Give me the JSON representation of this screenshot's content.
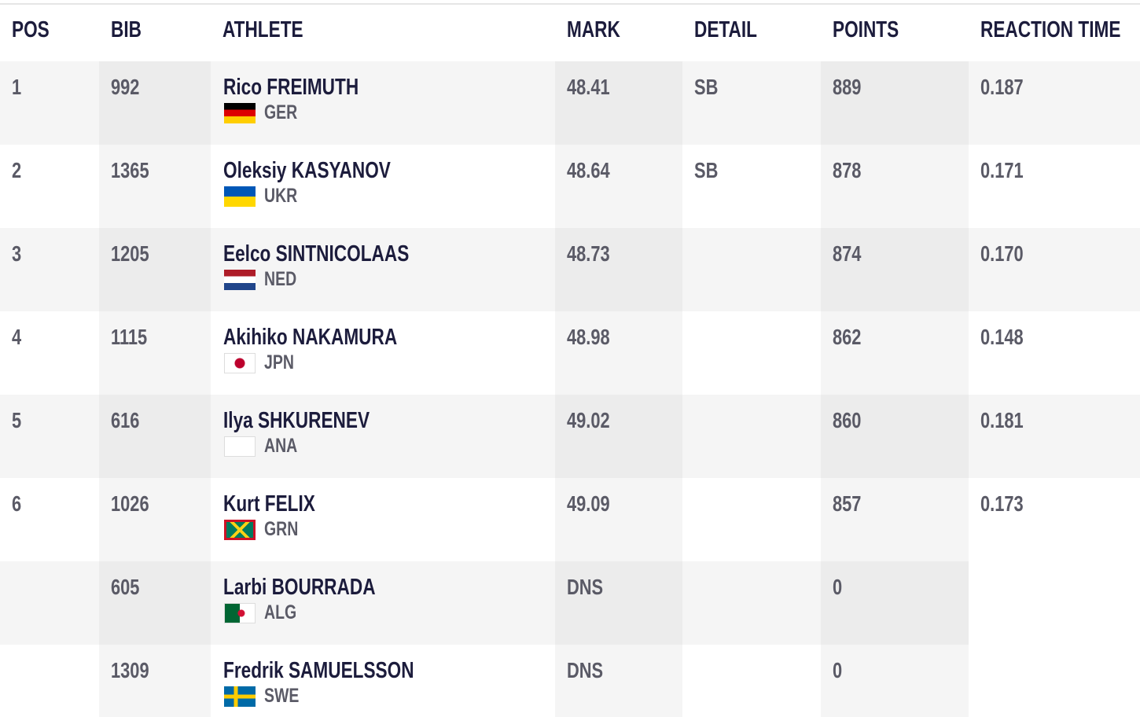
{
  "header": {
    "pos": "POS",
    "bib": "BIB",
    "athlete": "ATHLETE",
    "mark": "MARK",
    "detail": "DETAIL",
    "points": "POINTS",
    "reaction": "REACTION TIME"
  },
  "rows": [
    {
      "pos": "1",
      "bib": "992",
      "athlete": "Rico FREIMUTH",
      "country": "GER",
      "mark": "48.41",
      "detail": "SB",
      "points": "889",
      "reaction": "0.187"
    },
    {
      "pos": "2",
      "bib": "1365",
      "athlete": "Oleksiy KASYANOV",
      "country": "UKR",
      "mark": "48.64",
      "detail": "SB",
      "points": "878",
      "reaction": "0.171"
    },
    {
      "pos": "3",
      "bib": "1205",
      "athlete": "Eelco SINTNICOLAAS",
      "country": "NED",
      "mark": "48.73",
      "points": "874",
      "reaction": "0.170"
    },
    {
      "pos": "4",
      "bib": "1115",
      "athlete": "Akihiko NAKAMURA",
      "country": "JPN",
      "mark": "48.98",
      "points": "862",
      "reaction": "0.148"
    },
    {
      "pos": "5",
      "bib": "616",
      "athlete": "Ilya SHKURENEV",
      "country": "ANA",
      "mark": "49.02",
      "points": "860",
      "reaction": "0.181"
    },
    {
      "pos": "6",
      "bib": "1026",
      "athlete": "Kurt FELIX",
      "country": "GRN",
      "mark": "49.09",
      "points": "857",
      "reaction": "0.173"
    },
    {
      "bib": "605",
      "athlete": "Larbi BOURRADA",
      "country": "ALG",
      "mark": "DNS",
      "points": "0"
    },
    {
      "bib": "1309",
      "athlete": "Fredrik SAMUELSSON",
      "country": "SWE",
      "mark": "DNS",
      "points": "0"
    }
  ]
}
